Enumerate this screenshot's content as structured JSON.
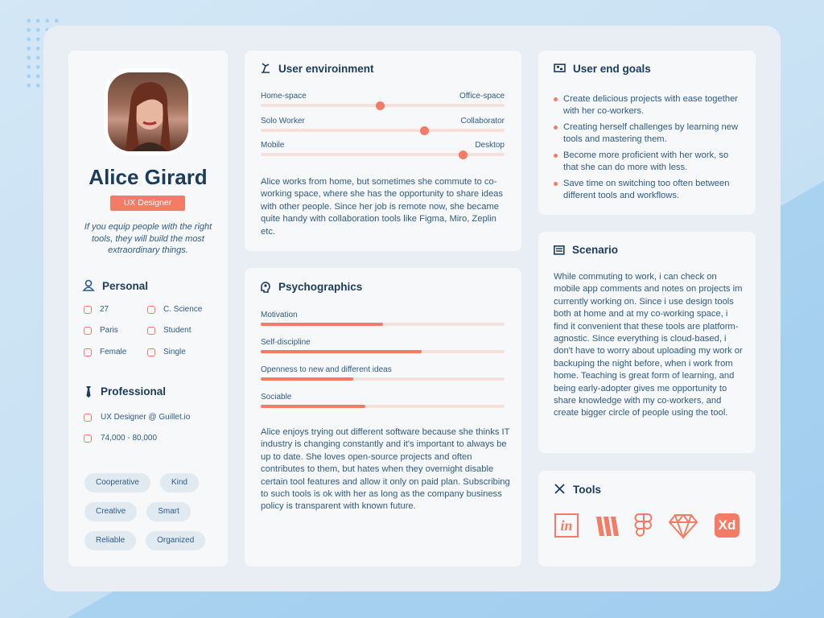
{
  "profile": {
    "name": "Alice Girard",
    "role": "UX Designer",
    "quote": "If you equip people with the right tools, they will build the most extraordinary things."
  },
  "personal": {
    "title": "Personal",
    "items": [
      "27",
      "C. Science",
      "Paris",
      "Student",
      "Female",
      "Single"
    ]
  },
  "professional": {
    "title": "Professional",
    "items": [
      "UX Designer @ Guillet.io",
      "74,000 - 80,000"
    ]
  },
  "traits": [
    "Cooperative",
    "Kind",
    "Creative",
    "Smart",
    "Reliable",
    "Organized"
  ],
  "environment": {
    "title": "User enviroinment",
    "sliders": [
      {
        "left": "Home-space",
        "right": "Office-space",
        "value": 49
      },
      {
        "left": "Solo Worker",
        "right": "Collaborator",
        "value": 67
      },
      {
        "left": "Mobile",
        "right": "Desktop",
        "value": 83
      }
    ],
    "text": "Alice works from home, but sometimes she commute to co-working space, where she has the opportunity to share ideas with other people. Since her job is remote now, she became quite handy with collaboration tools like Figma, Miro, Zeplin etc."
  },
  "psychographics": {
    "title": "Psychographics",
    "bars": [
      {
        "label": "Motivation",
        "value": 50
      },
      {
        "label": "Self-discipline",
        "value": 66
      },
      {
        "label": "Openness to new and different ideas",
        "value": 38
      },
      {
        "label": "Sociable",
        "value": 43
      }
    ],
    "text": "Alice enjoys trying out different software because she thinks IT industry is changing constantly and it's important to always be up to date. She loves open-source projects and often contributes to them, but hates when they overnight disable certain tool features and allow it only on paid plan. Subscribing to such tools is ok with her as long as the company business policy is transparent with known future."
  },
  "goals": {
    "title": "User end goals",
    "items": [
      "Create delicious projects with ease together with her co-workers.",
      "Creating herself challenges by learning new tools and mastering them.",
      "Become more proficient with her work, so that she can do more with less.",
      "Save time on switching too often between different tools and workflows."
    ]
  },
  "scenario": {
    "title": "Scenario",
    "text": "While commuting to work, i can check on mobile app comments and notes on projects im currently working on. Since i use design tools both at home and at my co-working space, i find it convenient that these tools are platform-agnostic. Since everything is cloud-based, i don't have to worry about uploading my work or backuping the night before, when i work from home. Teaching is great form of learning, and being early-adopter gives me opportunity to share knowledge with my co-workers, and create bigger circle of people using the tool."
  },
  "tools": {
    "title": "Tools",
    "logos": [
      "in",
      "Xd"
    ]
  }
}
